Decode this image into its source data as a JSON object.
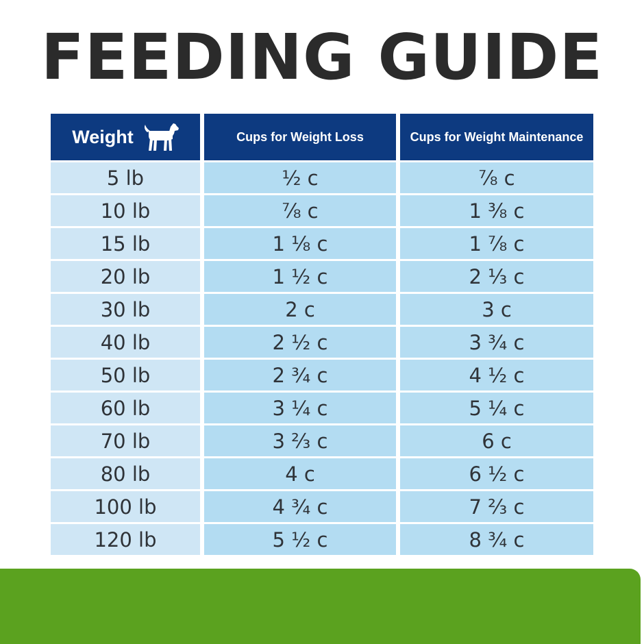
{
  "title": "FEEDING GUIDE",
  "table": {
    "headers": {
      "weight": "Weight",
      "loss": "Cups for Weight Loss",
      "maintenance": "Cups for Weight Maintenance"
    },
    "header_icon": "dog-icon",
    "rows": [
      {
        "weight": "5 lb",
        "loss": "½ c",
        "maintenance": "⅞ c"
      },
      {
        "weight": "10 lb",
        "loss": "⅞ c",
        "maintenance": "1 ⅜ c"
      },
      {
        "weight": "15 lb",
        "loss": "1 ⅛ c",
        "maintenance": "1 ⅞ c"
      },
      {
        "weight": "20 lb",
        "loss": "1 ½ c",
        "maintenance": "2 ⅓ c"
      },
      {
        "weight": "30 lb",
        "loss": "2 c",
        "maintenance": "3 c"
      },
      {
        "weight": "40 lb",
        "loss": "2 ½ c",
        "maintenance": "3 ¾ c"
      },
      {
        "weight": "50 lb",
        "loss": "2 ¾ c",
        "maintenance": "4 ½ c"
      },
      {
        "weight": "60 lb",
        "loss": "3 ¼ c",
        "maintenance": "5 ¼ c"
      },
      {
        "weight": "70 lb",
        "loss": "3 ⅔ c",
        "maintenance": "6 c"
      },
      {
        "weight": "80 lb",
        "loss": "4 c",
        "maintenance": "6 ½ c"
      },
      {
        "weight": "100 lb",
        "loss": "4 ¾ c",
        "maintenance": "7 ⅔ c"
      },
      {
        "weight": "120 lb",
        "loss": "5 ½ c",
        "maintenance": "8 ¾ c"
      }
    ]
  },
  "colors": {
    "header_bg": "#0d3a80",
    "title_text": "#2b2b2b",
    "footer_green": "#5ba21f"
  }
}
